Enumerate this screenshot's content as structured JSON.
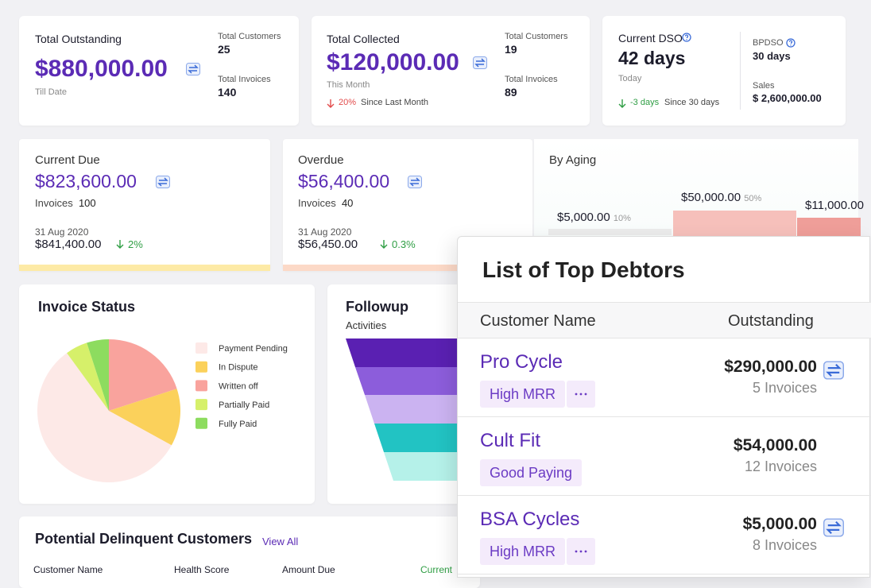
{
  "cards": {
    "total_outstanding": {
      "title": "Total Outstanding",
      "amount": "$880,000.00",
      "note": "Till Date",
      "customers_label": "Total Customers",
      "customers": "25",
      "invoices_label": "Total Invoices",
      "invoices": "140"
    },
    "total_collected": {
      "title": "Total Collected",
      "amount": "$120,000.00",
      "note": "This Month",
      "change": "20%",
      "change_note": "Since Last Month",
      "customers_label": "Total Customers",
      "customers": "19",
      "invoices_label": "Total Invoices",
      "invoices": "89"
    },
    "dso": {
      "title": "Current DSO",
      "value": "42 days",
      "note": "Today",
      "change": "-3 days",
      "change_note": "Since 30 days",
      "bpdso_label": "BPDSO",
      "bpdso": "30 days",
      "sales_label": "Sales",
      "sales": "$ 2,600,000.00"
    },
    "current_due": {
      "title": "Current Due",
      "amount": "$823,600.00",
      "invoices_label": "Invoices",
      "invoices": "100",
      "date": "31 Aug 2020",
      "prev_amount": "$841,400.00",
      "change": "2%"
    },
    "overdue": {
      "title": "Overdue",
      "amount": "$56,400.00",
      "invoices_label": "Invoices",
      "invoices": "40",
      "date": "31 Aug 2020",
      "prev_amount": "$56,450.00",
      "change": "0.3%"
    },
    "aging": {
      "title": "By Aging",
      "buckets": [
        {
          "amount": "$5,000.00",
          "share": "10%"
        },
        {
          "amount": "$50,000.00",
          "share": "50%"
        },
        {
          "amount": "$11,000.00"
        }
      ]
    }
  },
  "invoice_status": {
    "title": "Invoice Status",
    "slices": [
      {
        "name": "Payment Pending",
        "color": "#fde9e7",
        "value": 57
      },
      {
        "name": "In Dispute",
        "color": "#fbd15b",
        "value": 13
      },
      {
        "name": "Written off",
        "color": "#f9a39d",
        "value": 20
      },
      {
        "name": "Partially Paid",
        "color": "#d6f06a",
        "value": 5
      },
      {
        "name": "Fully Paid",
        "color": "#8ddc5f",
        "value": 5
      }
    ]
  },
  "followup": {
    "title": "Followup",
    "subtitle": "Activities"
  },
  "delinquent": {
    "title": "Potential Delinquent Customers",
    "link": "View All",
    "columns": [
      "Customer Name",
      "Health Score",
      "Amount Due",
      "Current"
    ]
  },
  "top_debtors": {
    "title": "List of Top Debtors",
    "columns": [
      "Customer Name",
      "Outstanding"
    ],
    "rows": [
      {
        "name": "Pro Cycle",
        "tag": "High MRR",
        "amount": "$290,000.00",
        "invoices": "5 Invoices"
      },
      {
        "name": "Cult Fit",
        "tag": "Good Paying",
        "amount": "$54,000.00",
        "invoices": "12 Invoices"
      },
      {
        "name": "BSA Cycles",
        "tag": "High MRR",
        "amount": "$5,000.00",
        "invoices": "8 Invoices"
      }
    ]
  }
}
